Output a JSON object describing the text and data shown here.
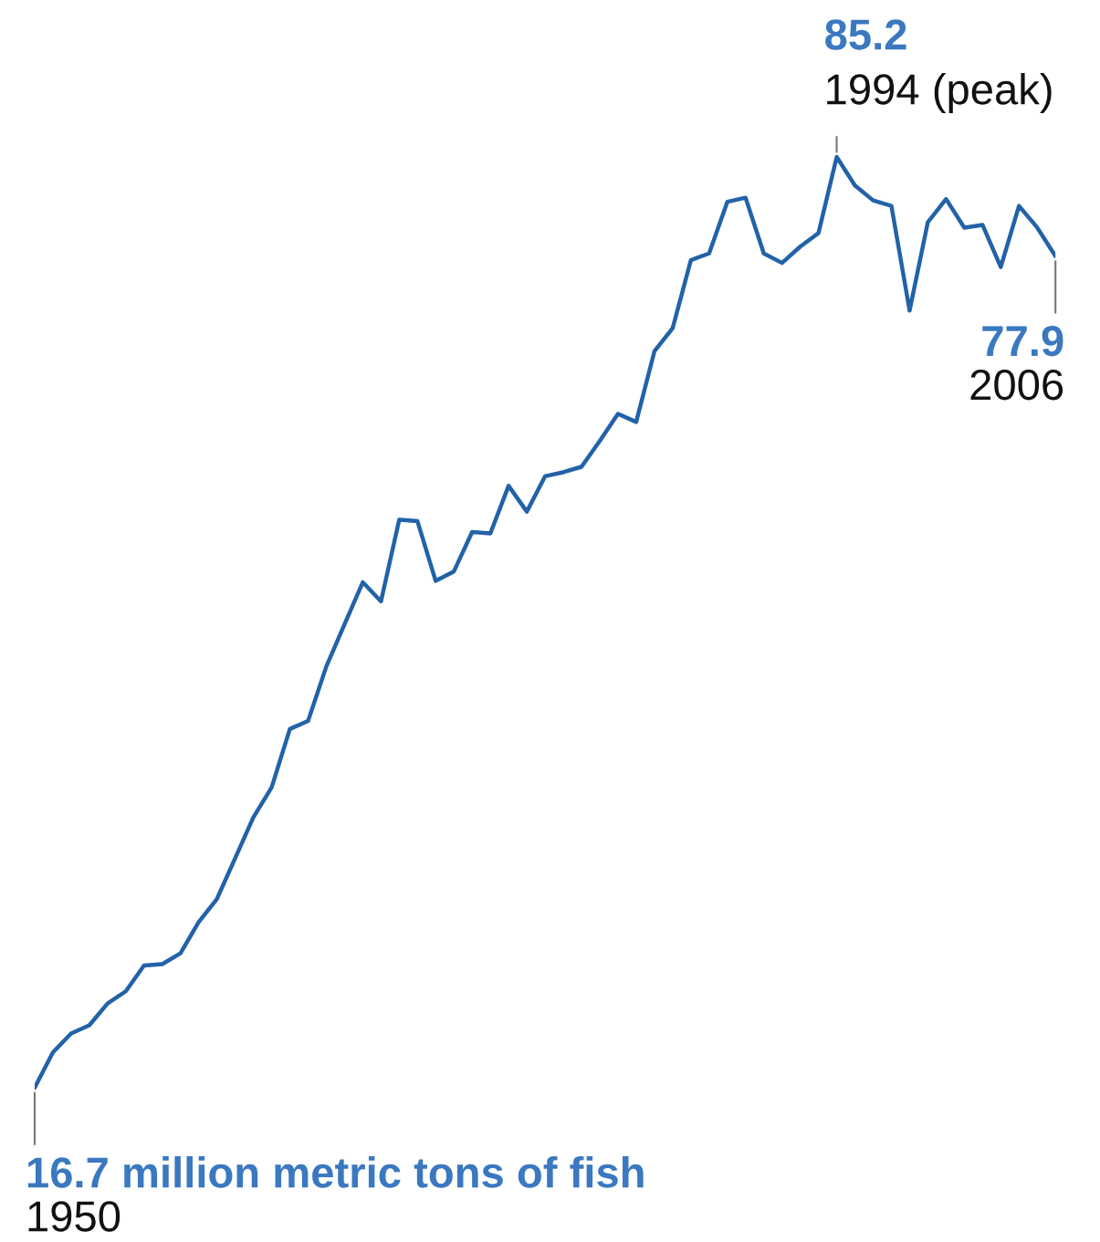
{
  "chart_data": {
    "type": "line",
    "categories": [
      null,
      null,
      null,
      null,
      null,
      null,
      null,
      null,
      null,
      null,
      null,
      null,
      null,
      null,
      null,
      null,
      null,
      null,
      null,
      null,
      null,
      null,
      null,
      null,
      null,
      null,
      null,
      null,
      null,
      null,
      null,
      null,
      null,
      null,
      null,
      null,
      null,
      null,
      null,
      null,
      null,
      null,
      null,
      null,
      null,
      null,
      null,
      null,
      null,
      null,
      null,
      null,
      null,
      null,
      null,
      null,
      null
    ],
    "series": [
      {
        "color": "#2262a8",
        "values": [
          16.7,
          19.3,
          20.7,
          21.3,
          22.9,
          23.8,
          25.7,
          25.8,
          26.6,
          28.9,
          30.6,
          33.6,
          36.6,
          38.8,
          43.1,
          43.7,
          47.7,
          50.8,
          53.9,
          52.5,
          58.5,
          58.4,
          54.0,
          54.7,
          57.6,
          57.5,
          61.0,
          59.1,
          61.7,
          62.0,
          62.4,
          64.3,
          66.3,
          65.7,
          70.9,
          72.6,
          77.6,
          78.1,
          81.9,
          82.2,
          78.1,
          77.4,
          78.6,
          79.6,
          85.2,
          83.1,
          82.0,
          81.6,
          73.9,
          80.4,
          82.1,
          80.0,
          80.2,
          77.1,
          81.6,
          80.0,
          77.9
        ],
        "value_labels": [
          "16.7 million metric tons of fish",
          null,
          null,
          null,
          null,
          null,
          null,
          null,
          null,
          null,
          null,
          null,
          null,
          null,
          null,
          null,
          null,
          null,
          null,
          null,
          null,
          null,
          null,
          null,
          null,
          null,
          null,
          null,
          null,
          null,
          null,
          null,
          null,
          null,
          null,
          null,
          null,
          null,
          null,
          null,
          null,
          null,
          null,
          null,
          "85.2",
          null,
          null,
          null,
          null,
          null,
          null,
          null,
          null,
          null,
          null,
          null,
          "77.9"
        ]
      }
    ],
    "annotations": [
      "1950",
      "1994 (peak)",
      "2006"
    ]
  }
}
